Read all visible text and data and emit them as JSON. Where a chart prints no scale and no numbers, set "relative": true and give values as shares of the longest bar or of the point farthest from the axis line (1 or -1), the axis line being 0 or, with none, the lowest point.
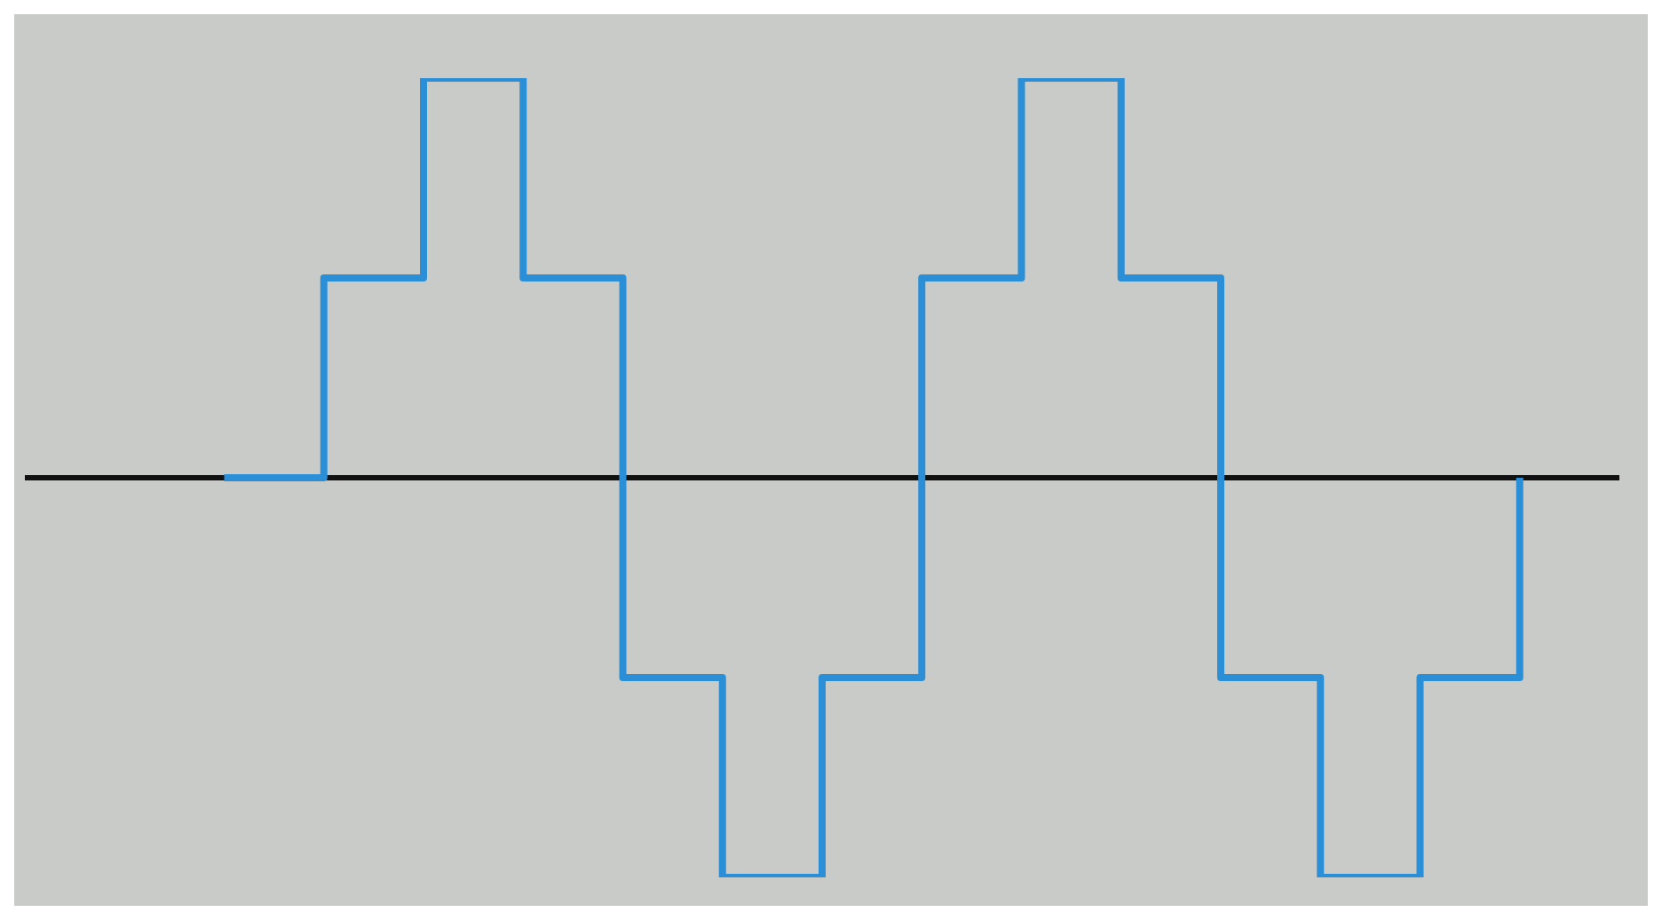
{
  "chart_data": {
    "type": "step",
    "relative": true,
    "categories": [
      null,
      null,
      null,
      null,
      null,
      null,
      null,
      null,
      null,
      null,
      null,
      null,
      null,
      null,
      null,
      null,
      null
    ],
    "series": [
      {
        "color": "#2b8fd8",
        "values": [
          null,
          null,
          0,
          0.5,
          1,
          0.5,
          -0.5,
          -1,
          -0.5,
          0.5,
          1,
          0.5,
          -0.5,
          -1,
          -0.5,
          0,
          null
        ]
      }
    ],
    "legend": false
  }
}
